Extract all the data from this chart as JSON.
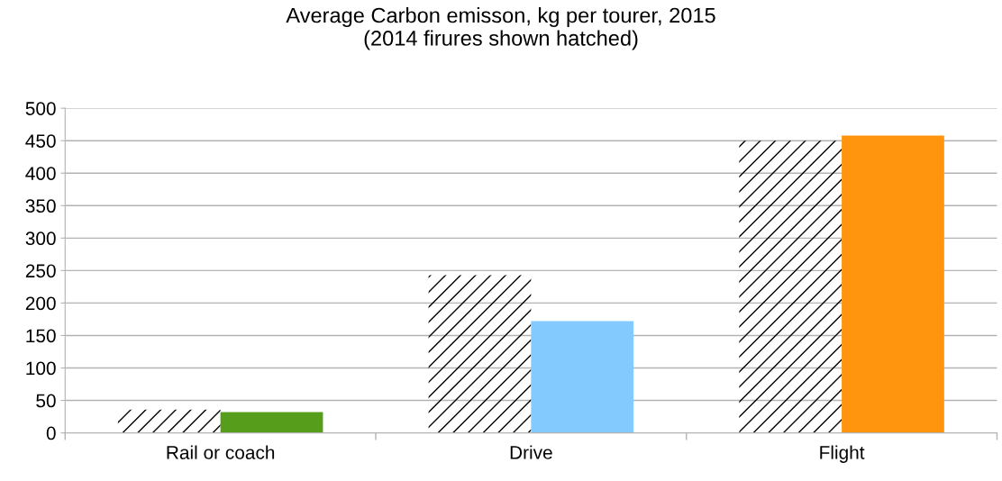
{
  "chart_data": {
    "type": "bar",
    "title": "Average Carbon emisson, kg per tourer, 2015\n(2014 firures shown hatched)",
    "categories": [
      "Rail or coach",
      "Drive",
      "Flight"
    ],
    "series": [
      {
        "color": "#000000",
        "values": [
          36,
          243,
          450
        ]
      },
      {
        "colors": [
          "#579d1c",
          "#83caff",
          "#ff950e"
        ],
        "values": [
          32,
          172,
          458
        ]
      }
    ],
    "ylim": [
      0,
      500
    ],
    "yticks": [
      0,
      50,
      100,
      150,
      200,
      250,
      300,
      350,
      400,
      450,
      500
    ],
    "grid": "y",
    "legend": false
  }
}
